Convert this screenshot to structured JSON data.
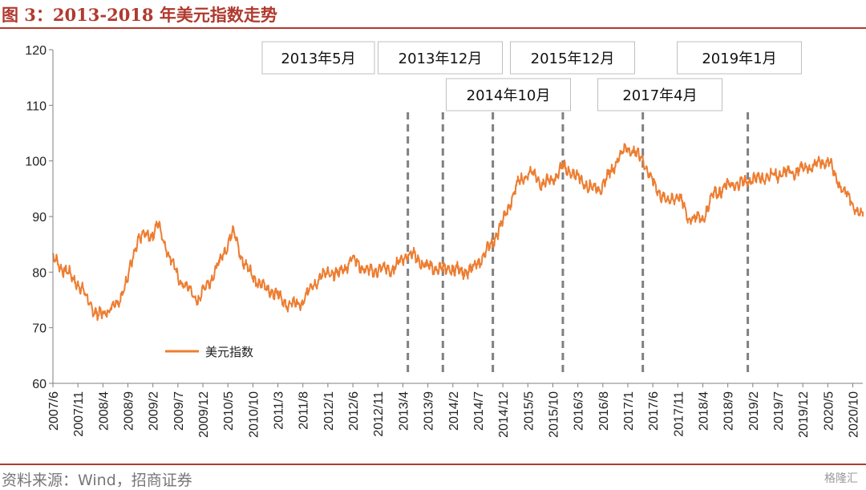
{
  "header": {
    "title": "图 3：2013-2018 年美元指数走势"
  },
  "footer": {
    "source": "资料来源：Wind，招商证券",
    "watermark": "格隆汇"
  },
  "colors": {
    "accent": "#b03a2e",
    "series": "#ed7d31",
    "marker": "#808080"
  },
  "chart_data": {
    "type": "line",
    "title": "",
    "xlabel": "",
    "ylabel": "",
    "ylim": [
      60,
      120
    ],
    "yticks": [
      60,
      70,
      80,
      90,
      100,
      110,
      120
    ],
    "xticks": [
      "2007/6",
      "2007/11",
      "2008/4",
      "2008/9",
      "2009/2",
      "2009/7",
      "2009/12",
      "2010/5",
      "2010/10",
      "2011/3",
      "2011/8",
      "2012/1",
      "2012/6",
      "2012/11",
      "2013/4",
      "2013/9",
      "2014/2",
      "2014/7",
      "2014/12",
      "2015/5",
      "2015/10",
      "2016/3",
      "2016/8",
      "2017/1",
      "2017/6",
      "2017/11",
      "2018/4",
      "2018/9",
      "2019/2",
      "2019/7",
      "2019/12",
      "2020/5",
      "2020/10"
    ],
    "grid": false,
    "legend": "bottom-left",
    "series": [
      {
        "name": "美元指数",
        "x": [
          "2007/6",
          "2007/11",
          "2008/3",
          "2008/7",
          "2008/9",
          "2008/11",
          "2009/2",
          "2009/3",
          "2009/7",
          "2009/11",
          "2009/12",
          "2010/3",
          "2010/6",
          "2010/8",
          "2010/11",
          "2011/3",
          "2011/5",
          "2011/8",
          "2011/10",
          "2012/1",
          "2012/3",
          "2012/6",
          "2012/9",
          "2012/11",
          "2013/2",
          "2013/5",
          "2013/9",
          "2013/12",
          "2014/2",
          "2014/5",
          "2014/7",
          "2014/10",
          "2014/12",
          "2015/3",
          "2015/5",
          "2015/8",
          "2015/10",
          "2015/12",
          "2016/3",
          "2016/6",
          "2016/8",
          "2016/11",
          "2017/1",
          "2017/3",
          "2017/4",
          "2017/6",
          "2017/9",
          "2017/11",
          "2018/1",
          "2018/4",
          "2018/6",
          "2018/9",
          "2018/12",
          "2019/1",
          "2019/4",
          "2019/7",
          "2019/10",
          "2019/12",
          "2020/3",
          "2020/5",
          "2020/7",
          "2020/9",
          "2020/12"
        ],
        "values": [
          82.5,
          78.0,
          72.0,
          74.5,
          79.0,
          86.0,
          87.0,
          88.5,
          79.0,
          75.0,
          76.5,
          81.0,
          87.5,
          82.0,
          78.0,
          76.0,
          74.0,
          74.5,
          78.0,
          80.0,
          79.5,
          82.5,
          80.0,
          80.5,
          80.5,
          83.5,
          81.0,
          80.5,
          80.5,
          80.0,
          81.5,
          85.5,
          89.0,
          96.0,
          98.0,
          96.0,
          96.5,
          99.0,
          97.0,
          95.0,
          95.5,
          100.5,
          102.5,
          101.0,
          100.5,
          96.0,
          92.5,
          94.0,
          90.0,
          89.5,
          94.0,
          95.5,
          96.0,
          96.5,
          97.0,
          97.5,
          98.0,
          98.5,
          99.5,
          100.0,
          96.5,
          93.5,
          90.0
        ]
      }
    ],
    "annotations": [
      {
        "label": "2013年5月",
        "date": "2013/5"
      },
      {
        "label": "2013年12月",
        "date": "2013/12"
      },
      {
        "label": "2014年10月",
        "date": "2014/10"
      },
      {
        "label": "2015年12月",
        "date": "2015/12"
      },
      {
        "label": "2017年4月",
        "date": "2017/4"
      },
      {
        "label": "2019年1月",
        "date": "2019/1"
      }
    ]
  }
}
